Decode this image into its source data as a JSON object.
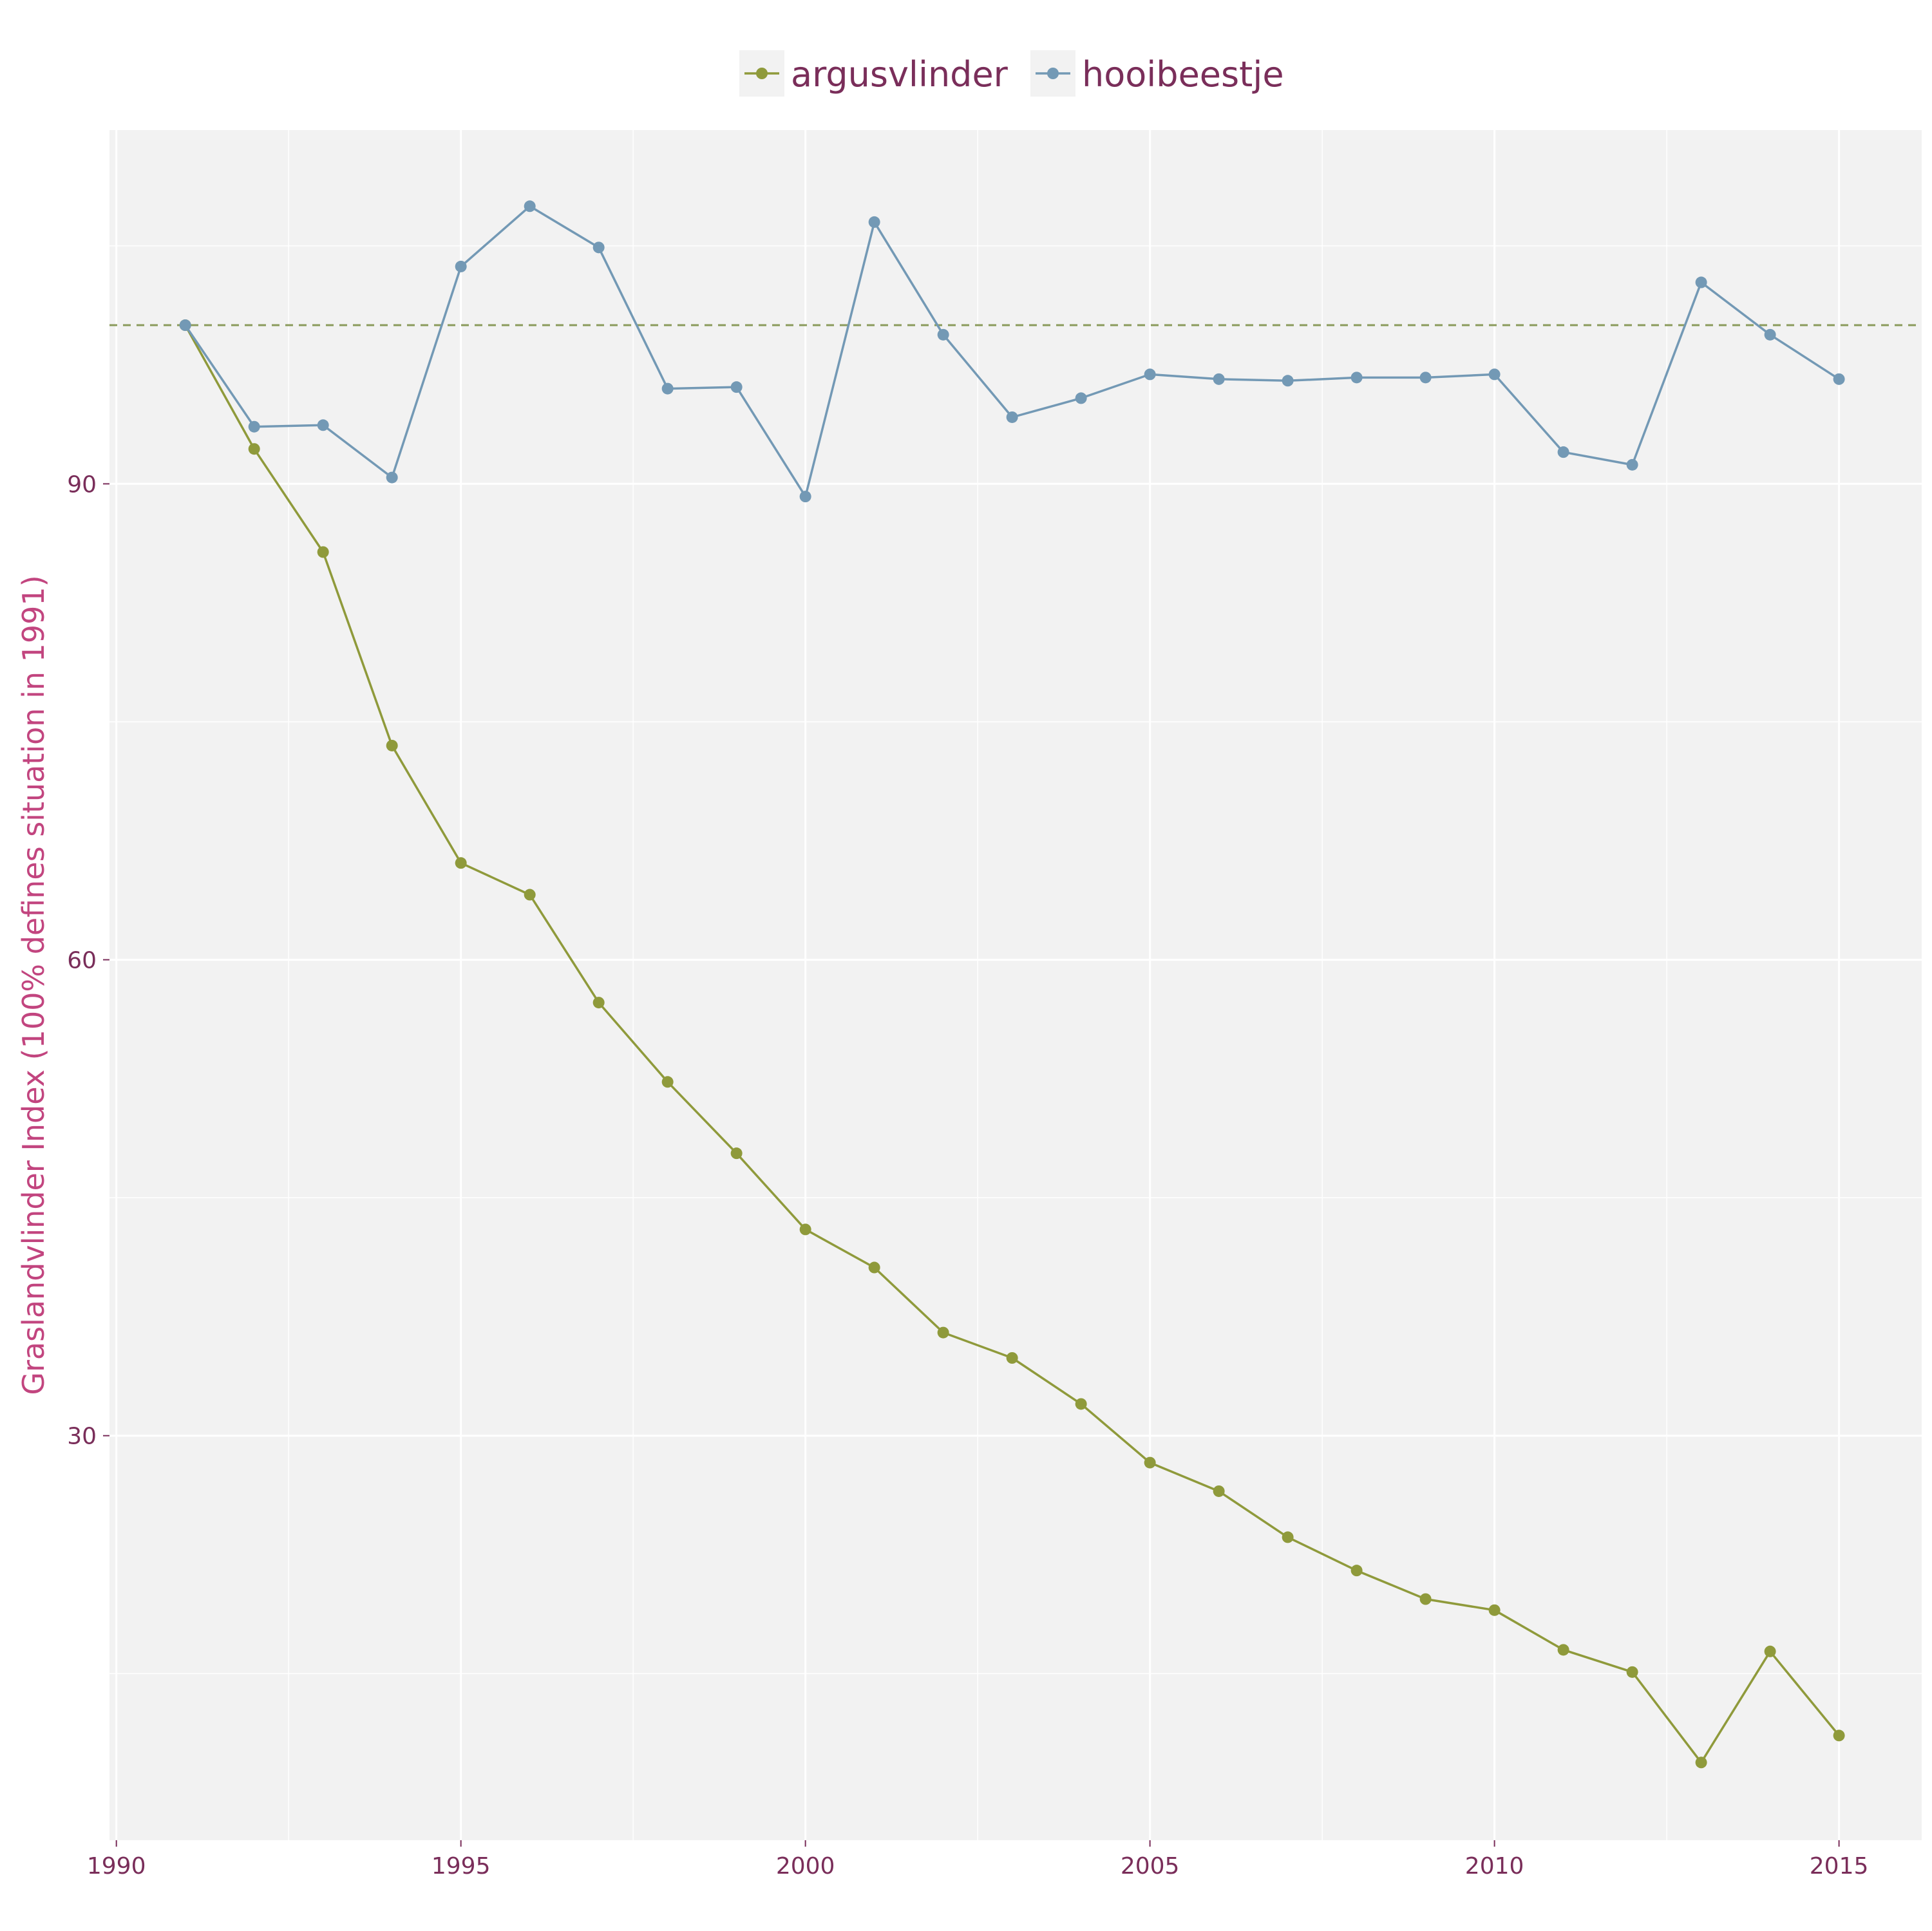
{
  "chart_data": {
    "type": "line",
    "ylabel": "Graslandvlinder Index (100% defines situation in 1991)",
    "xlabel": "",
    "xlim": [
      1989.9,
      2016.2
    ],
    "ylim": [
      4.5,
      112.3
    ],
    "x_ticks": [
      1990,
      1995,
      2000,
      2005,
      2010,
      2015
    ],
    "y_ticks": [
      30,
      60,
      90
    ],
    "x_tick_labels": [
      "1990",
      "1995",
      "2000",
      "2005",
      "2010",
      "2015"
    ],
    "y_tick_labels": [
      "30",
      "60",
      "90"
    ],
    "grid": true,
    "legend": "top-center",
    "reference_line": {
      "y": 100,
      "style": "dashed",
      "color": "#8a9a5b"
    },
    "x": [
      1991,
      1992,
      1993,
      1994,
      1995,
      1996,
      1997,
      1998,
      1999,
      2000,
      2001,
      2002,
      2003,
      2004,
      2005,
      2006,
      2007,
      2008,
      2009,
      2010,
      2011,
      2012,
      2013,
      2014,
      2015
    ],
    "series": [
      {
        "name": "argusvlinder",
        "color": "#8f9a3b",
        "values": [
          100,
          92.2,
          85.7,
          73.5,
          66.1,
          64.1,
          57.3,
          52.3,
          47.8,
          43.0,
          40.6,
          36.5,
          34.9,
          32.0,
          28.3,
          26.5,
          23.6,
          21.5,
          19.7,
          19.0,
          16.5,
          15.1,
          9.4,
          16.4,
          11.1
        ]
      },
      {
        "name": "hooibeestje",
        "color": "#7399b5",
        "values": [
          100,
          93.6,
          93.7,
          90.4,
          103.7,
          107.5,
          104.9,
          96.0,
          96.1,
          89.2,
          106.5,
          99.4,
          94.2,
          95.4,
          96.9,
          96.6,
          96.5,
          96.7,
          96.7,
          96.9,
          92.0,
          91.2,
          102.7,
          99.4,
          96.6
        ]
      }
    ]
  }
}
